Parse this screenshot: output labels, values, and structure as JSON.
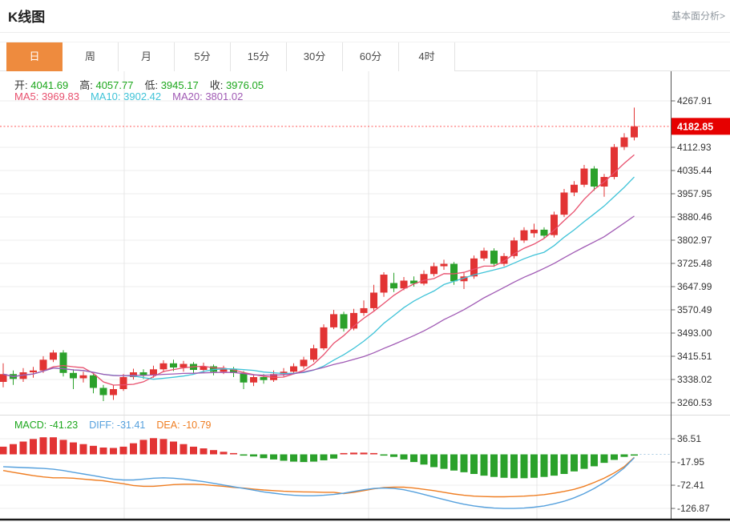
{
  "page": {
    "title": "K线图",
    "top_link": "基本面分析>"
  },
  "tabs": [
    {
      "id": "day",
      "label": "日",
      "active": true
    },
    {
      "id": "week",
      "label": "周",
      "active": false
    },
    {
      "id": "month",
      "label": "月",
      "active": false
    },
    {
      "id": "5min",
      "label": "5分",
      "active": false
    },
    {
      "id": "15min",
      "label": "15分",
      "active": false
    },
    {
      "id": "30min",
      "label": "30分",
      "active": false
    },
    {
      "id": "60min",
      "label": "60分",
      "active": false
    },
    {
      "id": "4hour",
      "label": "4时",
      "active": false
    }
  ],
  "ohlc_row": {
    "value_color": "#1ca71c",
    "items": [
      {
        "label": "开:",
        "value": "4041.69"
      },
      {
        "label": "高:",
        "value": "4057.77"
      },
      {
        "label": "低:",
        "value": "3945.17"
      },
      {
        "label": "收:",
        "value": "3976.05"
      }
    ]
  },
  "ma_row": [
    {
      "label": "MA5:",
      "value": "3969.83",
      "color": "#e8506e"
    },
    {
      "label": "MA10:",
      "value": "3902.42",
      "color": "#3fc3d8"
    },
    {
      "label": "MA20:",
      "value": "3801.02",
      "color": "#a05ab4"
    }
  ],
  "macd_row": [
    {
      "label": "MACD:",
      "value": "-41.23",
      "color": "#1ca71c"
    },
    {
      "label": "DIFF:",
      "value": "-31.41",
      "color": "#55a0dd"
    },
    {
      "label": "DEA:",
      "value": "-10.79",
      "color": "#ef7d21"
    }
  ],
  "colors": {
    "up": "#e23434",
    "down": "#2ba12b",
    "ma5": "#e8506e",
    "ma10": "#3fc3d8",
    "ma20": "#a05ab4",
    "diff_line": "#55a0dd",
    "dea_line": "#ef7d21",
    "price_box": "#e60000",
    "price_line": "#ff5a5a",
    "grid": "#ececec",
    "axis": "#555555",
    "tab_accent": "#ee8b3e"
  },
  "chart_data": {
    "type": "candlestick",
    "title": "K线图",
    "legend": [
      "MA5",
      "MA10",
      "MA20",
      "DIFF",
      "DEA",
      "MACD"
    ],
    "price_axis_ticks": [
      "4267.91",
      "4112.93",
      "4035.44",
      "3957.95",
      "3880.46",
      "3802.97",
      "3725.48",
      "3647.99",
      "3570.49",
      "3493.00",
      "3415.51",
      "3338.02",
      "3260.53"
    ],
    "tick_step": 77.49,
    "current_price": "4182.85",
    "candles": [
      [
        3330,
        3392,
        3312,
        3356
      ],
      [
        3356,
        3368,
        3320,
        3340
      ],
      [
        3340,
        3376,
        3330,
        3362
      ],
      [
        3362,
        3380,
        3344,
        3368
      ],
      [
        3368,
        3416,
        3360,
        3404
      ],
      [
        3404,
        3436,
        3396,
        3428
      ],
      [
        3428,
        3436,
        3348,
        3360
      ],
      [
        3360,
        3372,
        3306,
        3342
      ],
      [
        3342,
        3364,
        3328,
        3352
      ],
      [
        3352,
        3356,
        3292,
        3310
      ],
      [
        3310,
        3320,
        3266,
        3286
      ],
      [
        3286,
        3318,
        3270,
        3306
      ],
      [
        3306,
        3356,
        3300,
        3346
      ],
      [
        3346,
        3374,
        3338,
        3362
      ],
      [
        3362,
        3372,
        3340,
        3352
      ],
      [
        3352,
        3384,
        3344,
        3372
      ],
      [
        3372,
        3402,
        3362,
        3392
      ],
      [
        3392,
        3404,
        3366,
        3378
      ],
      [
        3378,
        3400,
        3364,
        3390
      ],
      [
        3390,
        3396,
        3358,
        3370
      ],
      [
        3370,
        3394,
        3360,
        3382
      ],
      [
        3382,
        3388,
        3352,
        3364
      ],
      [
        3364,
        3384,
        3356,
        3374
      ],
      [
        3374,
        3380,
        3346,
        3360
      ],
      [
        3360,
        3366,
        3306,
        3328
      ],
      [
        3328,
        3354,
        3316,
        3346
      ],
      [
        3346,
        3356,
        3324,
        3336
      ],
      [
        3336,
        3368,
        3330,
        3356
      ],
      [
        3356,
        3376,
        3348,
        3364
      ],
      [
        3364,
        3392,
        3356,
        3382
      ],
      [
        3382,
        3414,
        3374,
        3404
      ],
      [
        3404,
        3454,
        3396,
        3442
      ],
      [
        3442,
        3522,
        3436,
        3512
      ],
      [
        3512,
        3570,
        3506,
        3556
      ],
      [
        3556,
        3564,
        3498,
        3508
      ],
      [
        3508,
        3574,
        3502,
        3560
      ],
      [
        3560,
        3602,
        3550,
        3576
      ],
      [
        3576,
        3654,
        3568,
        3628
      ],
      [
        3628,
        3696,
        3614,
        3688
      ],
      [
        3660,
        3694,
        3630,
        3642
      ],
      [
        3642,
        3680,
        3636,
        3668
      ],
      [
        3668,
        3682,
        3648,
        3658
      ],
      [
        3658,
        3702,
        3652,
        3690
      ],
      [
        3690,
        3728,
        3682,
        3716
      ],
      [
        3716,
        3738,
        3704,
        3724
      ],
      [
        3724,
        3730,
        3654,
        3666
      ],
      [
        3666,
        3694,
        3640,
        3682
      ],
      [
        3682,
        3752,
        3674,
        3742
      ],
      [
        3742,
        3778,
        3734,
        3768
      ],
      [
        3768,
        3776,
        3714,
        3724
      ],
      [
        3724,
        3760,
        3716,
        3750
      ],
      [
        3750,
        3812,
        3742,
        3802
      ],
      [
        3802,
        3846,
        3794,
        3836
      ],
      [
        3826,
        3858,
        3812,
        3838
      ],
      [
        3838,
        3846,
        3808,
        3818
      ],
      [
        3820,
        3898,
        3812,
        3888
      ],
      [
        3888,
        3974,
        3880,
        3962
      ],
      [
        3962,
        4000,
        3950,
        3988
      ],
      [
        3988,
        4054,
        3980,
        4042
      ],
      [
        4042,
        4050,
        3968,
        3982
      ],
      [
        3982,
        4024,
        3948,
        4014
      ],
      [
        4014,
        4124,
        4006,
        4114
      ],
      [
        4114,
        4160,
        4104,
        4146
      ],
      [
        4146,
        4245.5,
        4136,
        4182.85
      ]
    ],
    "ma_overlays": [
      {
        "name": "MA5",
        "window": 5
      },
      {
        "name": "MA10",
        "window": 10
      },
      {
        "name": "MA20",
        "window": 20
      }
    ],
    "macd": {
      "axis_ticks": [
        "36.51",
        "-17.95",
        "-72.41",
        "-126.87"
      ],
      "bar_formula": "2*(diff-dea)",
      "diff": [
        -29,
        -30,
        -31,
        -32,
        -33,
        -35,
        -38,
        -42,
        -46,
        -50,
        -54,
        -58,
        -60,
        -60,
        -58,
        -56,
        -55,
        -56,
        -58,
        -61,
        -64,
        -68,
        -72,
        -76,
        -80,
        -84,
        -88,
        -91,
        -94,
        -96,
        -97,
        -97,
        -96,
        -94,
        -91,
        -87,
        -83,
        -80,
        -79,
        -80,
        -83,
        -88,
        -94,
        -100,
        -106,
        -112,
        -117,
        -121,
        -124,
        -126,
        -127,
        -127,
        -126,
        -124,
        -121,
        -116,
        -110,
        -102,
        -92,
        -80,
        -66,
        -50,
        -32,
        -8
      ],
      "dea": [
        -38,
        -42,
        -46,
        -50,
        -53,
        -55,
        -55,
        -56,
        -58,
        -60,
        -62,
        -65.5,
        -69,
        -73,
        -75,
        -75,
        -73,
        -71,
        -70,
        -70,
        -71,
        -73,
        -75,
        -77.5,
        -79,
        -81.5,
        -83.5,
        -85,
        -86.5,
        -87.5,
        -88,
        -88.5,
        -89,
        -89,
        -92,
        -89,
        -85,
        -81,
        -78,
        -77,
        -77,
        -79,
        -82,
        -85,
        -89,
        -93,
        -96,
        -98,
        -99,
        -99.5,
        -99.5,
        -99,
        -98,
        -96.5,
        -94.5,
        -91,
        -87,
        -82,
        -75,
        -66,
        -56,
        -43.5,
        -29,
        -7
      ]
    }
  }
}
